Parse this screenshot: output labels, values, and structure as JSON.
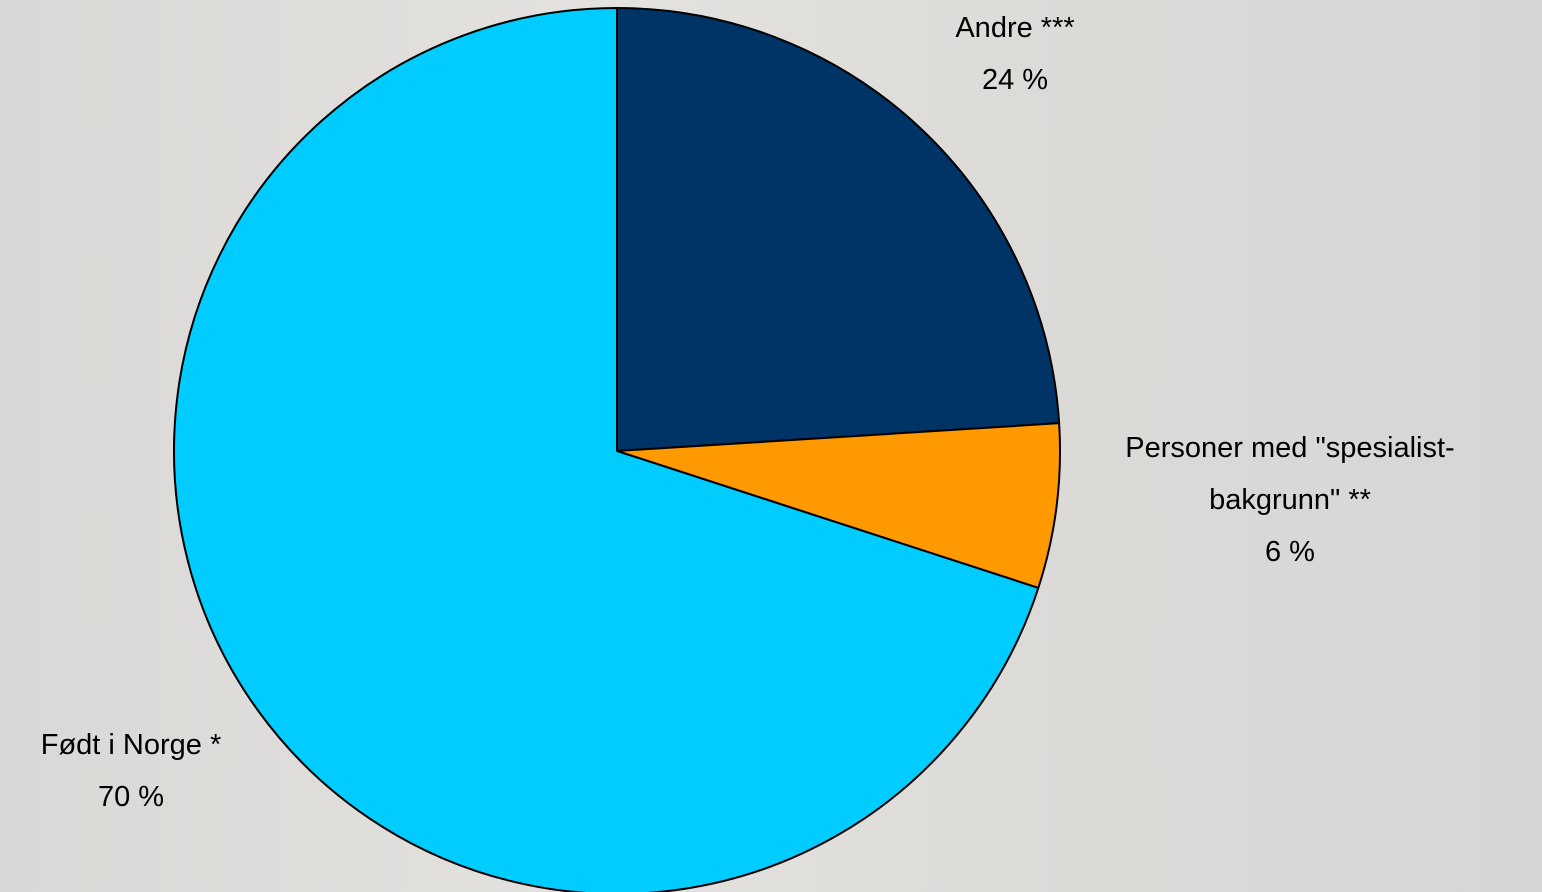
{
  "chart_data": {
    "type": "pie",
    "categories": [
      "Andre ***",
      "Personer med \"spesialist-bakgrunn\" **",
      "Født i Norge *"
    ],
    "values": [
      24,
      6,
      70
    ],
    "value_labels": [
      "24 %",
      "6 %",
      "70 %"
    ],
    "colors": [
      "#003366",
      "#ff9900",
      "#00ccff"
    ],
    "start_angle": 0,
    "direction": "clockwise"
  }
}
